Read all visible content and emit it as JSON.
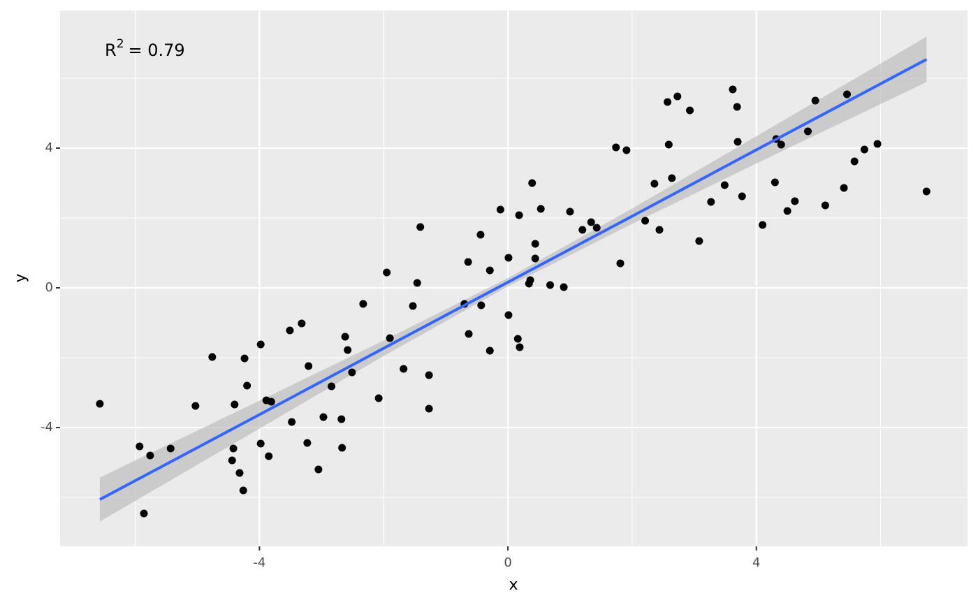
{
  "chart_data": {
    "type": "scatter",
    "x_label": "x",
    "y_label": "y",
    "annotation": [
      "R",
      "2",
      "= 0.79"
    ],
    "xlim": [
      -7.21,
      7.4
    ],
    "ylim": [
      -7.4,
      7.94
    ],
    "xticks": [
      -4,
      0,
      4
    ],
    "yticks": [
      -4,
      0,
      4
    ],
    "x_minor_grid": [
      -6,
      -2,
      2,
      6
    ],
    "y_minor_grid": [
      -6,
      -2,
      2,
      6
    ],
    "grid": true,
    "series": [
      {
        "color": "#000000",
        "x": [
          -6.57,
          -5.93,
          -5.76,
          -5.86,
          -5.43,
          -5.03,
          -4.76,
          -4.42,
          -4.4,
          -4.44,
          -4.32,
          -4.26,
          -4.24,
          -4.2,
          -3.98,
          -3.98,
          -3.89,
          -3.81,
          -3.85,
          -3.51,
          -3.48,
          -3.32,
          -3.21,
          -3.23,
          -3.05,
          -2.97,
          -2.84,
          -2.68,
          -2.67,
          -2.62,
          -2.58,
          -2.51,
          -2.33,
          -2.08,
          -1.95,
          -1.9,
          -1.68,
          -1.53,
          -1.46,
          -1.41,
          -1.27,
          -1.27,
          -0.7,
          -0.64,
          -0.63,
          -0.44,
          -0.43,
          -0.29,
          -0.29,
          -0.12,
          0.01,
          0.01,
          0.16,
          0.19,
          0.18,
          0.34,
          0.36,
          0.39,
          0.44,
          0.44,
          0.53,
          0.68,
          0.9,
          1.0,
          1.2,
          1.34,
          1.43,
          1.74,
          1.81,
          1.91,
          2.21,
          2.36,
          2.44,
          2.57,
          2.59,
          2.64,
          2.73,
          2.93,
          3.08,
          3.27,
          3.49,
          3.62,
          3.69,
          3.7,
          3.77,
          4.1,
          4.3,
          4.32,
          4.4,
          4.5,
          4.62,
          4.83,
          4.95,
          5.11,
          5.41,
          5.46,
          5.58,
          5.74,
          5.95,
          6.74
        ],
        "values": [
          -3.32,
          -4.54,
          -4.8,
          -6.46,
          -4.6,
          -3.38,
          -1.98,
          -4.6,
          -3.34,
          -4.94,
          -5.3,
          -5.8,
          -2.02,
          -2.8,
          -1.62,
          -4.46,
          -3.22,
          -3.26,
          -4.82,
          -1.22,
          -3.84,
          -1.02,
          -2.24,
          -4.44,
          -5.2,
          -3.7,
          -2.82,
          -3.76,
          -4.58,
          -1.4,
          -1.78,
          -2.42,
          -0.46,
          -3.16,
          0.44,
          -1.44,
          -2.32,
          -0.52,
          0.14,
          1.74,
          -2.5,
          -3.46,
          -0.46,
          0.74,
          -1.32,
          1.52,
          -0.5,
          0.5,
          -1.8,
          2.24,
          0.86,
          -0.78,
          -1.46,
          -1.7,
          2.08,
          0.12,
          0.22,
          3.0,
          1.26,
          0.84,
          2.26,
          0.08,
          0.02,
          2.18,
          1.66,
          1.88,
          1.72,
          4.02,
          0.7,
          3.94,
          1.92,
          2.98,
          1.66,
          5.32,
          4.1,
          3.14,
          5.48,
          5.08,
          1.34,
          2.46,
          2.94,
          5.68,
          5.18,
          4.18,
          2.62,
          1.8,
          3.02,
          4.26,
          4.1,
          2.2,
          2.48,
          4.48,
          5.36,
          2.36,
          2.86,
          5.54,
          3.62,
          3.96,
          4.12,
          2.76
        ]
      }
    ],
    "fit": {
      "color": "#3366ff",
      "band_color": "#bdbdbd",
      "x": [
        -6.57,
        -4,
        -2,
        0,
        2,
        4,
        6.74
      ],
      "values": [
        -6.06,
        -3.63,
        -1.73,
        0.16,
        2.05,
        3.95,
        6.54
      ],
      "lower": [
        -6.69,
        -4.03,
        -1.95,
        0.04,
        1.83,
        3.56,
        5.89
      ],
      "upper": [
        -5.43,
        -3.23,
        -1.51,
        0.28,
        2.27,
        4.34,
        7.19
      ]
    }
  }
}
